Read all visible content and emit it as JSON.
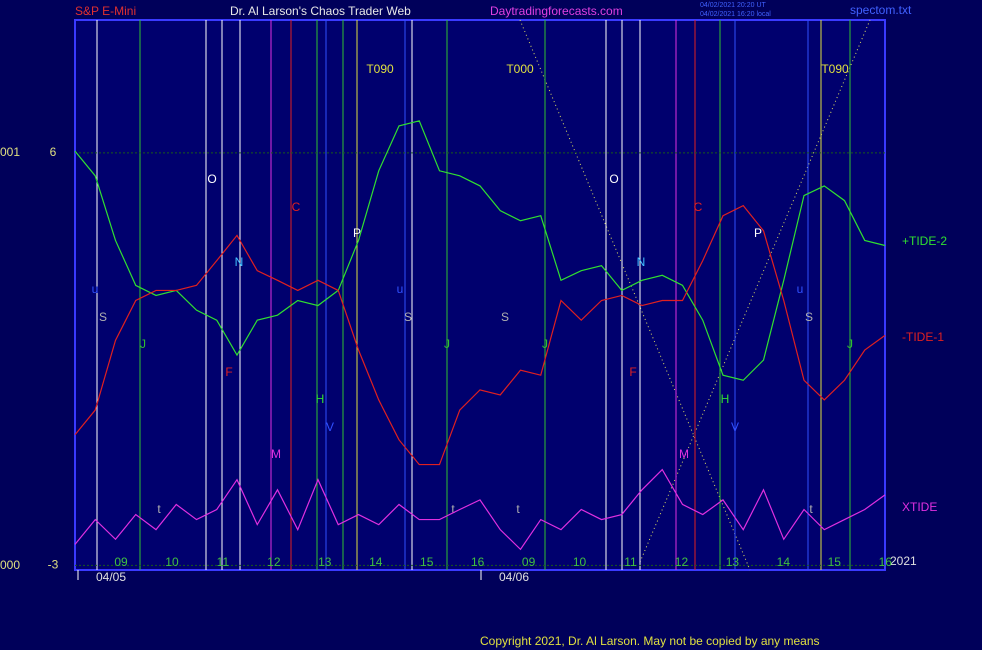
{
  "header": {
    "instrument": "S&P E-Mini",
    "site_title": "Dr. Al Larson's Chaos Trader Web",
    "site_url": "Daytradingforecasts.com",
    "stamp_1": "04/02/2021 20:20 UT",
    "stamp_2": "04/02/2021 16:20 local",
    "file": "spectom.txt"
  },
  "footer": {
    "copyright": "Copyright 2021, Dr. Al Larson. May not be copied by any means",
    "year": "2021"
  },
  "left_labels": [
    "001",
    "000"
  ],
  "annotations": [
    "T090",
    "T000",
    "T090",
    "O",
    "O",
    "C",
    "C",
    "N",
    "N",
    "P",
    "P",
    "S",
    "S",
    "S",
    "S",
    "J",
    "J",
    "J",
    "J",
    "F",
    "F",
    "H",
    "H",
    "V",
    "V",
    "M",
    "M",
    "t",
    "t",
    "t",
    "t",
    "u",
    "u",
    "u"
  ],
  "chart_data": {
    "type": "line",
    "x": [
      0,
      1,
      2,
      3,
      4,
      5,
      6,
      7,
      8,
      9,
      10,
      11,
      12,
      13,
      14,
      15,
      16,
      17,
      18,
      19,
      20,
      21,
      22,
      23,
      24,
      25,
      26,
      27,
      28,
      29,
      30,
      31,
      32,
      33,
      34,
      35,
      36,
      37,
      38,
      39,
      40
    ],
    "xlim": [
      0,
      40
    ],
    "ylim": [
      -3.1,
      8.9
    ],
    "yticks": [
      6,
      -3
    ],
    "hours": [
      "09",
      "10",
      "11",
      "12",
      "13",
      "14",
      "15",
      "16",
      "09",
      "10",
      "11",
      "12",
      "13",
      "14",
      "15",
      "16"
    ],
    "dates": [
      "04/05",
      "04/06"
    ],
    "series": [
      {
        "name": "+TIDE-2",
        "color": "#30e030",
        "values": [
          6.04,
          5.5,
          4.09,
          3.11,
          2.89,
          3.0,
          2.57,
          2.35,
          1.59,
          2.35,
          2.46,
          2.78,
          2.67,
          3.0,
          4.09,
          5.61,
          6.59,
          6.7,
          5.61,
          5.5,
          5.28,
          4.74,
          4.52,
          4.63,
          3.22,
          3.43,
          3.54,
          3.0,
          3.22,
          3.33,
          3.11,
          2.35,
          1.15,
          1.04,
          1.48,
          3.22,
          5.07,
          5.28,
          4.96,
          4.09,
          3.98
        ]
      },
      {
        "name": "-TIDE-1",
        "color": "#e02020",
        "values": [
          -0.15,
          0.39,
          1.91,
          2.78,
          3.0,
          3.0,
          3.11,
          3.65,
          4.2,
          3.43,
          3.22,
          3.0,
          3.22,
          3.0,
          1.7,
          0.61,
          -0.26,
          -0.8,
          -0.8,
          0.39,
          0.83,
          0.72,
          1.26,
          1.15,
          2.78,
          2.35,
          2.78,
          2.89,
          2.67,
          2.78,
          2.78,
          3.65,
          4.63,
          4.85,
          4.3,
          2.78,
          1.04,
          0.61,
          1.04,
          1.7,
          2.02
        ]
      },
      {
        "name": "XTIDE",
        "color": "#e030e0",
        "values": [
          -2.54,
          -2.0,
          -2.43,
          -1.89,
          -2.22,
          -1.67,
          -2.0,
          -1.78,
          -1.13,
          -2.11,
          -1.35,
          -2.22,
          -1.13,
          -2.11,
          -1.89,
          -2.11,
          -1.67,
          -2.0,
          -2.0,
          -1.78,
          -1.57,
          -2.22,
          -2.65,
          -2.0,
          -2.22,
          -1.78,
          -2.0,
          -1.89,
          -1.35,
          -0.91,
          -1.67,
          -1.89,
          -1.57,
          -2.22,
          -1.35,
          -2.43,
          -1.78,
          -2.22,
          -2.0,
          -1.78,
          -1.46
        ]
      }
    ]
  }
}
